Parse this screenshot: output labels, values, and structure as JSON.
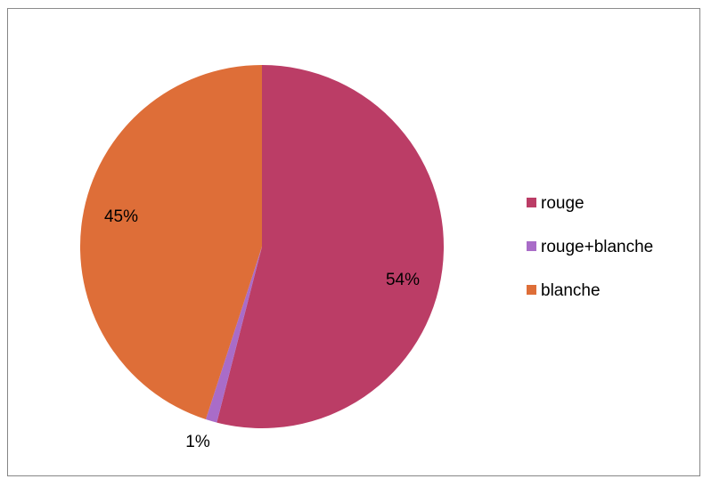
{
  "chart_data": {
    "type": "pie",
    "categories": [
      "rouge",
      "rouge+blanche",
      "blanche"
    ],
    "values": [
      54,
      1,
      45
    ],
    "data_labels": [
      "54%",
      "1%",
      "45%"
    ],
    "colors": [
      "#BB3D66",
      "#A96CC8",
      "#DE6E38"
    ],
    "start_angle": "12 o'clock",
    "direction": "clockwise",
    "legend": {
      "position": "right",
      "entries": [
        "rouge",
        "rouge+blanche",
        "blanche"
      ]
    },
    "title": ""
  }
}
